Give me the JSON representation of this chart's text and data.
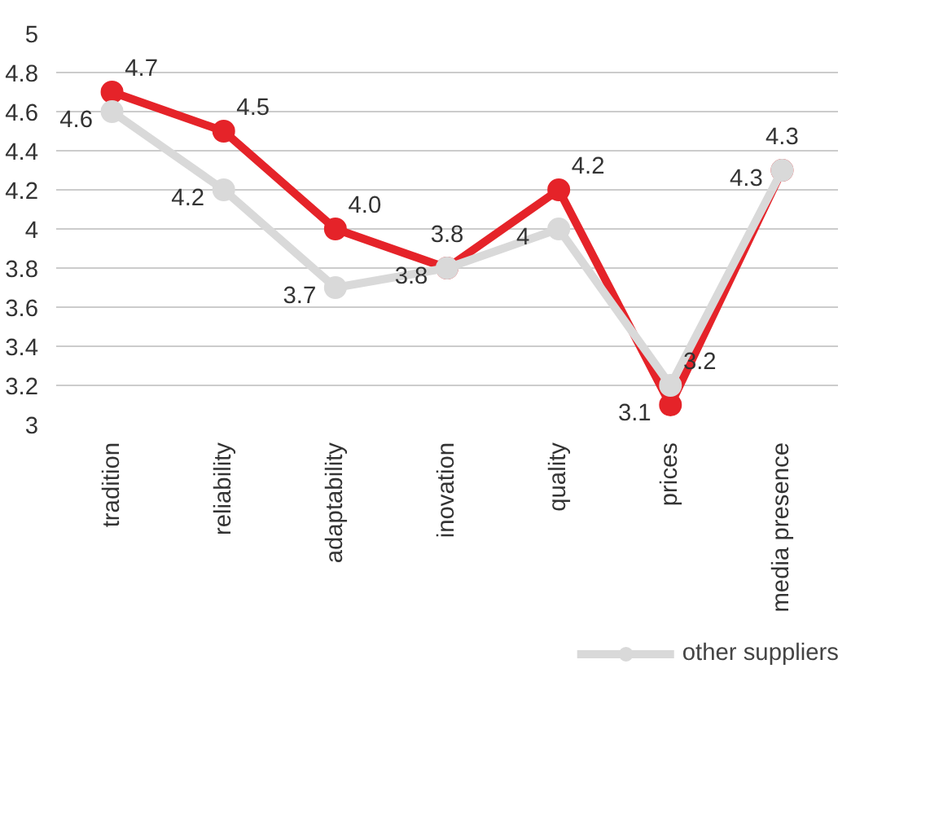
{
  "chart_data": {
    "type": "line",
    "categories": [
      "tradition",
      "reliability",
      "adaptability",
      "inovation",
      "quality",
      "prices",
      "media presence"
    ],
    "series": [
      {
        "color": "#e52329",
        "values": [
          4.7,
          4.5,
          4.0,
          3.8,
          4.2,
          3.1,
          4.3
        ],
        "value_labels": [
          "4.7",
          "4.5",
          "4.0",
          "3.8",
          "4.2",
          "3.1",
          "4.3"
        ]
      },
      {
        "name": "other suppliers",
        "color": "#d9d9d9",
        "values": [
          4.6,
          4.2,
          3.7,
          3.8,
          4.0,
          3.2,
          4.3
        ],
        "value_labels": [
          "4.6",
          "4.2",
          "3.7",
          "3.8",
          "4",
          "3.2",
          "4.3"
        ]
      }
    ],
    "ylim": [
      3,
      5
    ],
    "yticks": [
      3,
      3.2,
      3.4,
      3.6,
      3.8,
      4,
      4.2,
      4.4,
      4.6,
      4.8,
      5
    ],
    "grid": "y",
    "legend": "bottom",
    "marker": "circle",
    "line_style": "solid"
  }
}
